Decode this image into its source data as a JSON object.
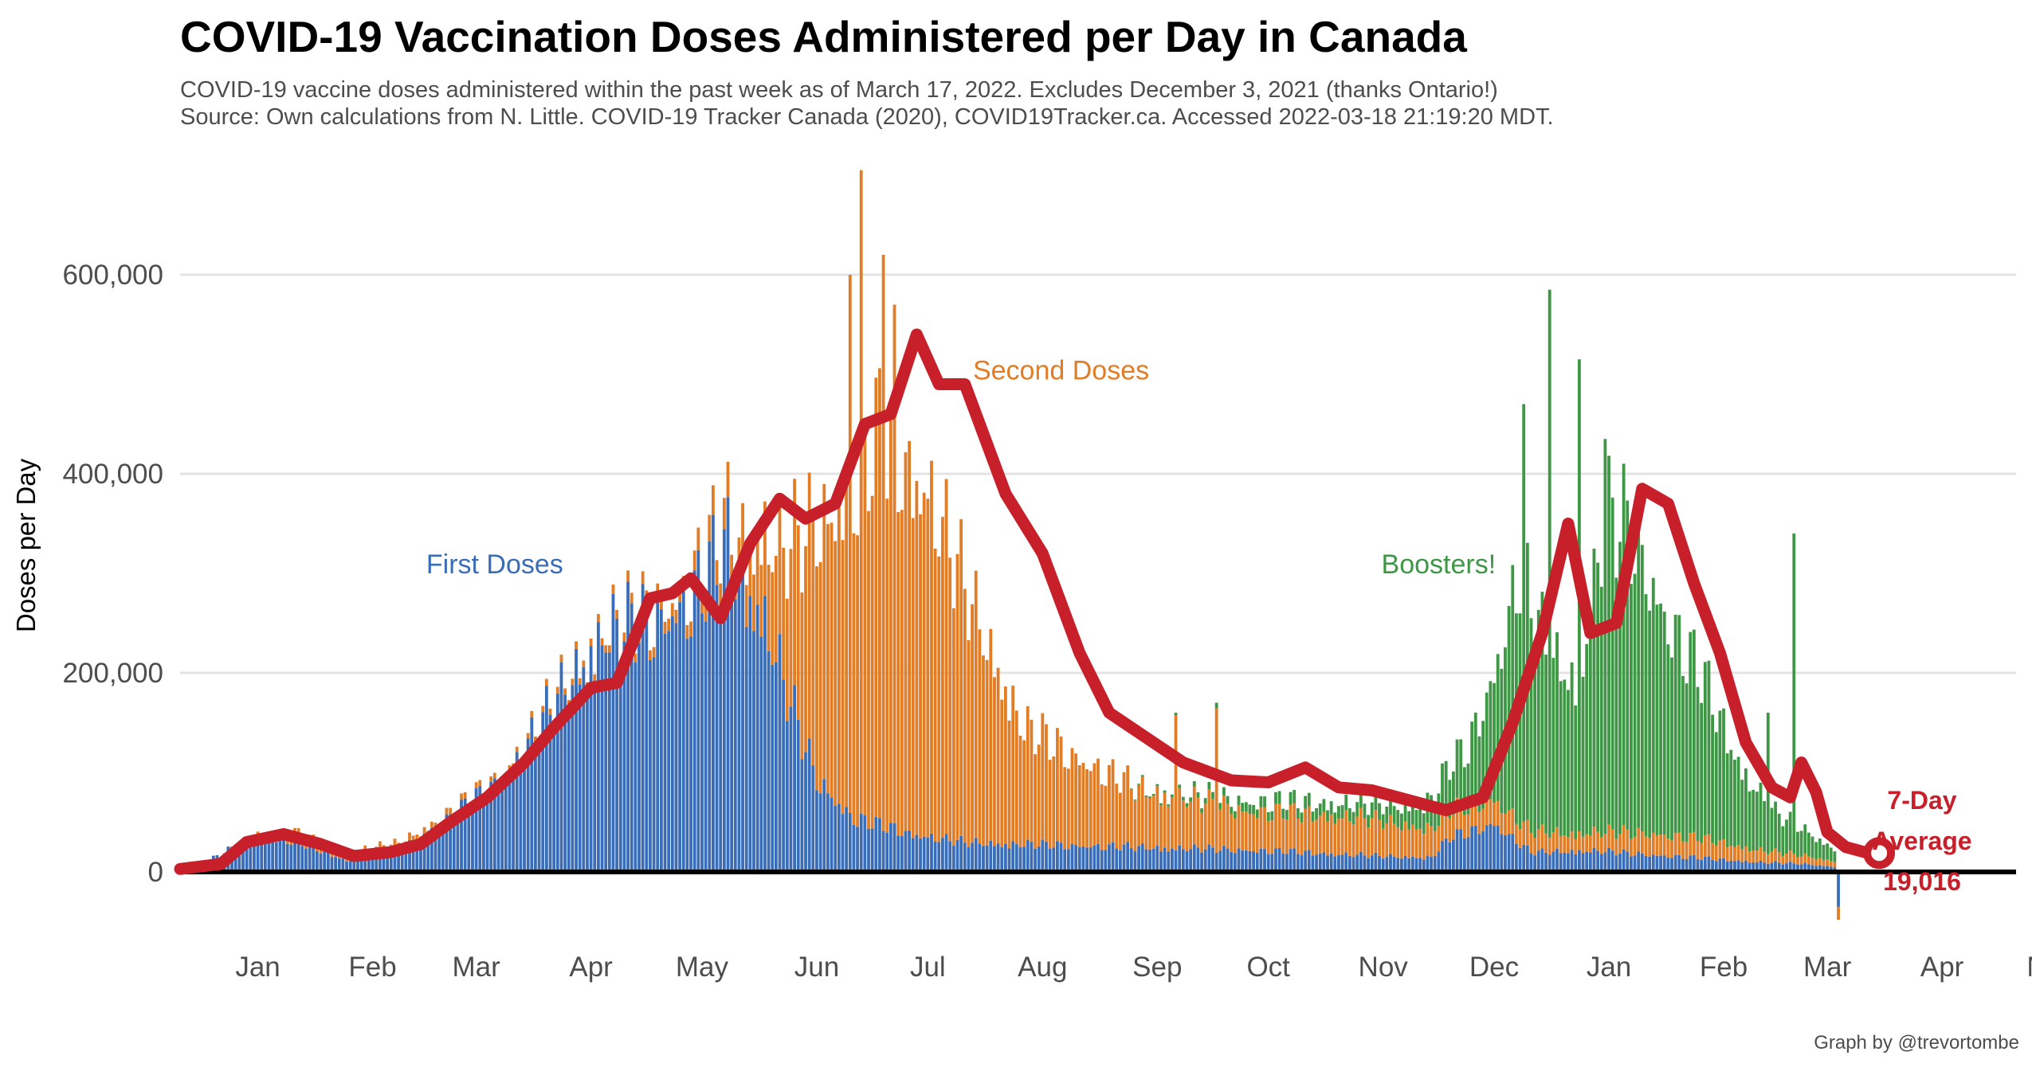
{
  "title": "COVID-19 Vaccination Doses Administered per Day in Canada",
  "subtitle": "COVID-19 vaccine doses administered within the past week as of March 17, 2022. Excludes December 3, 2021 (thanks Ontario!)",
  "source": "Source: Own calculations from N. Little. COVID-19 Tracker Canada (2020), COVID19Tracker.ca. Accessed 2022-03-18 21:19:20 MDT.",
  "credit": "Graph by @trevortombe",
  "colors": {
    "first": "#3a6db8",
    "second": "#e07d26",
    "booster": "#3e9745",
    "avg": "#c8202a",
    "grid": "#e3e3e3",
    "axis": "#000000"
  },
  "chart_data": {
    "type": "bar",
    "stacked": true,
    "ylabel": "Doses per Day",
    "ylim": [
      -60000,
      700000
    ],
    "yticks": [
      0,
      200000,
      400000,
      600000
    ],
    "ytick_labels": [
      "0",
      "200,000",
      "400,000",
      "600,000"
    ],
    "grid": true,
    "xlim": [
      "2020-12-25",
      "2022-05-05"
    ],
    "months": [
      {
        "label": "Jan",
        "date": "2021-01-15"
      },
      {
        "label": "Feb",
        "date": "2021-02-15"
      },
      {
        "label": "Mar",
        "date": "2021-03-15"
      },
      {
        "label": "Apr",
        "date": "2021-04-15"
      },
      {
        "label": "May",
        "date": "2021-05-15"
      },
      {
        "label": "Jun",
        "date": "2021-06-15"
      },
      {
        "label": "Jul",
        "date": "2021-07-15"
      },
      {
        "label": "Aug",
        "date": "2021-08-15"
      },
      {
        "label": "Sep",
        "date": "2021-09-15"
      },
      {
        "label": "Oct",
        "date": "2021-10-15"
      },
      {
        "label": "Nov",
        "date": "2021-11-15"
      },
      {
        "label": "Dec",
        "date": "2021-12-15"
      },
      {
        "label": "Jan",
        "date": "2022-01-15"
      },
      {
        "label": "Feb",
        "date": "2022-02-15"
      },
      {
        "label": "Mar",
        "date": "2022-03-15"
      },
      {
        "label": "Apr",
        "date": "2022-04-15"
      },
      {
        "label": "May",
        "date": "2022-05-15"
      }
    ],
    "series": [
      {
        "name": "First Doses",
        "color_key": "first",
        "points": [
          [
            "2020-12-25",
            5000
          ],
          [
            "2021-01-01",
            10000
          ],
          [
            "2021-01-15",
            38000
          ],
          [
            "2021-01-25",
            32000
          ],
          [
            "2021-02-08",
            12000
          ],
          [
            "2021-02-22",
            22000
          ],
          [
            "2021-03-08",
            55000
          ],
          [
            "2021-03-22",
            95000
          ],
          [
            "2021-04-05",
            170000
          ],
          [
            "2021-04-18",
            245000
          ],
          [
            "2021-05-01",
            255000
          ],
          [
            "2021-05-12",
            280000
          ],
          [
            "2021-05-22",
            330000
          ],
          [
            "2021-06-01",
            260000
          ],
          [
            "2021-06-08",
            170000
          ],
          [
            "2021-06-15",
            95000
          ],
          [
            "2021-06-25",
            55000
          ],
          [
            "2021-07-10",
            40000
          ],
          [
            "2021-07-25",
            30000
          ],
          [
            "2021-08-15",
            28000
          ],
          [
            "2021-09-15",
            25000
          ],
          [
            "2021-10-15",
            22000
          ],
          [
            "2021-11-15",
            16000
          ],
          [
            "2021-11-28",
            15000
          ],
          [
            "2021-12-03",
            35000
          ],
          [
            "2021-12-15",
            50000
          ],
          [
            "2021-12-25",
            20000
          ],
          [
            "2022-01-10",
            22000
          ],
          [
            "2022-01-25",
            18000
          ],
          [
            "2022-02-10",
            14000
          ],
          [
            "2022-02-25",
            10000
          ],
          [
            "2022-03-10",
            8000
          ],
          [
            "2022-03-17",
            5000
          ]
        ]
      },
      {
        "name": "Second Doses",
        "color_key": "second",
        "points": [
          [
            "2020-12-25",
            0
          ],
          [
            "2021-01-10",
            0
          ],
          [
            "2021-01-25",
            8000
          ],
          [
            "2021-02-15",
            8000
          ],
          [
            "2021-03-05",
            6000
          ],
          [
            "2021-03-25",
            5000
          ],
          [
            "2021-04-20",
            8000
          ],
          [
            "2021-05-10",
            15000
          ],
          [
            "2021-05-25",
            35000
          ],
          [
            "2021-06-05",
            120000
          ],
          [
            "2021-06-15",
            260000
          ],
          [
            "2021-06-25",
            340000
          ],
          [
            "2021-07-02",
            400000
          ],
          [
            "2021-07-15",
            360000
          ],
          [
            "2021-07-25",
            260000
          ],
          [
            "2021-08-10",
            120000
          ],
          [
            "2021-08-25",
            90000
          ],
          [
            "2021-09-10",
            60000
          ],
          [
            "2021-09-25",
            50000
          ],
          [
            "2021-10-10",
            40000
          ],
          [
            "2021-10-25",
            40000
          ],
          [
            "2021-11-10",
            38000
          ],
          [
            "2021-11-28",
            30000
          ],
          [
            "2021-12-15",
            25000
          ],
          [
            "2022-01-05",
            18000
          ],
          [
            "2022-01-25",
            22000
          ],
          [
            "2022-02-10",
            20000
          ],
          [
            "2022-02-25",
            12000
          ],
          [
            "2022-03-17",
            6000
          ]
        ]
      },
      {
        "name": "Boosters!",
        "color_key": "booster",
        "points": [
          [
            "2020-12-25",
            0
          ],
          [
            "2021-09-05",
            0
          ],
          [
            "2021-09-20",
            3000
          ],
          [
            "2021-10-10",
            10000
          ],
          [
            "2021-10-25",
            12000
          ],
          [
            "2021-11-10",
            15000
          ],
          [
            "2021-11-25",
            22000
          ],
          [
            "2021-12-08",
            60000
          ],
          [
            "2021-12-15",
            130000
          ],
          [
            "2021-12-22",
            260000
          ],
          [
            "2021-12-30",
            180000
          ],
          [
            "2022-01-07",
            160000
          ],
          [
            "2022-01-14",
            320000
          ],
          [
            "2022-01-21",
            310000
          ],
          [
            "2022-01-31",
            220000
          ],
          [
            "2022-02-10",
            160000
          ],
          [
            "2022-02-20",
            80000
          ],
          [
            "2022-03-01",
            40000
          ],
          [
            "2022-03-10",
            25000
          ],
          [
            "2022-03-17",
            12000
          ]
        ]
      }
    ],
    "spikes": [
      {
        "date": "2021-06-27",
        "value": 705000
      },
      {
        "date": "2021-07-03",
        "value": 620000
      },
      {
        "date": "2021-06-24",
        "value": 600000
      },
      {
        "date": "2021-07-06",
        "value": 570000
      },
      {
        "date": "2021-12-30",
        "value": 585000
      },
      {
        "date": "2022-01-07",
        "value": 515000
      },
      {
        "date": "2021-12-23",
        "value": 470000
      },
      {
        "date": "2022-01-14",
        "value": 435000
      },
      {
        "date": "2022-03-06",
        "value": 340000
      },
      {
        "date": "2022-02-27",
        "value": 160000
      },
      {
        "date": "2021-09-20",
        "value": 160000
      },
      {
        "date": "2021-10-01",
        "value": 170000
      }
    ],
    "seven_day_average": {
      "name": "7-Day Average",
      "points": [
        [
          "2020-12-25",
          3000
        ],
        [
          "2021-01-05",
          8000
        ],
        [
          "2021-01-12",
          30000
        ],
        [
          "2021-01-22",
          38000
        ],
        [
          "2021-02-01",
          28000
        ],
        [
          "2021-02-10",
          16000
        ],
        [
          "2021-02-20",
          20000
        ],
        [
          "2021-02-28",
          28000
        ],
        [
          "2021-03-08",
          50000
        ],
        [
          "2021-03-18",
          75000
        ],
        [
          "2021-03-28",
          110000
        ],
        [
          "2021-04-05",
          145000
        ],
        [
          "2021-04-15",
          185000
        ],
        [
          "2021-04-22",
          190000
        ],
        [
          "2021-05-01",
          275000
        ],
        [
          "2021-05-07",
          280000
        ],
        [
          "2021-05-12",
          295000
        ],
        [
          "2021-05-20",
          255000
        ],
        [
          "2021-05-28",
          330000
        ],
        [
          "2021-06-05",
          375000
        ],
        [
          "2021-06-12",
          355000
        ],
        [
          "2021-06-20",
          370000
        ],
        [
          "2021-06-28",
          450000
        ],
        [
          "2021-07-05",
          460000
        ],
        [
          "2021-07-12",
          540000
        ],
        [
          "2021-07-18",
          490000
        ],
        [
          "2021-07-25",
          490000
        ],
        [
          "2021-08-05",
          380000
        ],
        [
          "2021-08-15",
          320000
        ],
        [
          "2021-08-25",
          220000
        ],
        [
          "2021-09-02",
          160000
        ],
        [
          "2021-09-12",
          135000
        ],
        [
          "2021-09-22",
          110000
        ],
        [
          "2021-10-05",
          92000
        ],
        [
          "2021-10-15",
          90000
        ],
        [
          "2021-10-25",
          105000
        ],
        [
          "2021-11-03",
          85000
        ],
        [
          "2021-11-12",
          82000
        ],
        [
          "2021-11-22",
          72000
        ],
        [
          "2021-12-02",
          62000
        ],
        [
          "2021-12-12",
          75000
        ],
        [
          "2021-12-20",
          150000
        ],
        [
          "2021-12-28",
          240000
        ],
        [
          "2022-01-04",
          350000
        ],
        [
          "2022-01-10",
          240000
        ],
        [
          "2022-01-17",
          250000
        ],
        [
          "2022-01-24",
          385000
        ],
        [
          "2022-01-31",
          370000
        ],
        [
          "2022-02-07",
          290000
        ],
        [
          "2022-02-14",
          220000
        ],
        [
          "2022-02-21",
          130000
        ],
        [
          "2022-02-28",
          85000
        ],
        [
          "2022-03-05",
          75000
        ],
        [
          "2022-03-08",
          110000
        ],
        [
          "2022-03-12",
          80000
        ],
        [
          "2022-03-15",
          40000
        ],
        [
          "2022-03-20",
          25000
        ],
        [
          "2022-03-25",
          20000
        ],
        [
          "2022-03-29",
          19016
        ]
      ]
    },
    "final_value": "19,016",
    "annotations": [
      {
        "text": "First Doses",
        "color_key": "first",
        "date": "2021-03-20",
        "value": 300000
      },
      {
        "text": "Second Doses",
        "color_key": "second",
        "date": "2021-08-20",
        "value": 495000
      },
      {
        "text": "Boosters!",
        "color_key": "booster",
        "date": "2021-11-30",
        "value": 300000
      }
    ],
    "avg_label": [
      "7-Day",
      "Average",
      "19,016"
    ]
  }
}
